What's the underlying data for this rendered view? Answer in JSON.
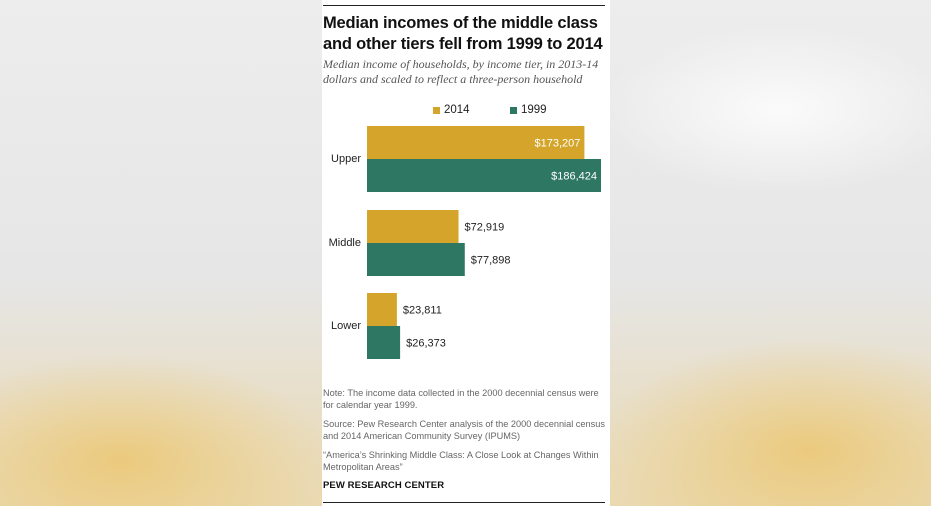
{
  "title": "Median incomes of the middle class and other tiers fell from 1999 to 2014",
  "subtitle": "Median income of households, by income tier, in 2013-14 dollars and scaled to reflect a three-person household",
  "colors": {
    "series_2014": "#d4a52a",
    "series_1999": "#2e7763"
  },
  "chart_data": {
    "type": "bar",
    "orientation": "horizontal",
    "categories": [
      "Upper",
      "Middle",
      "Lower"
    ],
    "series": [
      {
        "name": "2014",
        "values": [
          173207,
          72919,
          23811
        ],
        "labels": [
          "$173,207",
          "$72,919",
          "$23,811"
        ]
      },
      {
        "name": "1999",
        "values": [
          186424,
          77898,
          26373
        ],
        "labels": [
          "$186,424",
          "$77,898",
          "$26,373"
        ]
      }
    ],
    "legend": "top",
    "grid": false,
    "xlim": [
      0,
      186424
    ]
  },
  "notes": {
    "note": "Note: The income data collected in the 2000 decennial census were for calendar year 1999.",
    "source": "Source: Pew Research Center analysis of the 2000 decennial census and 2014 American Community Survey (IPUMS)",
    "report": "“America’s Shrinking Middle Class: A Close Look at Changes Within Metropolitan Areas”"
  },
  "brand": "PEW RESEARCH CENTER"
}
